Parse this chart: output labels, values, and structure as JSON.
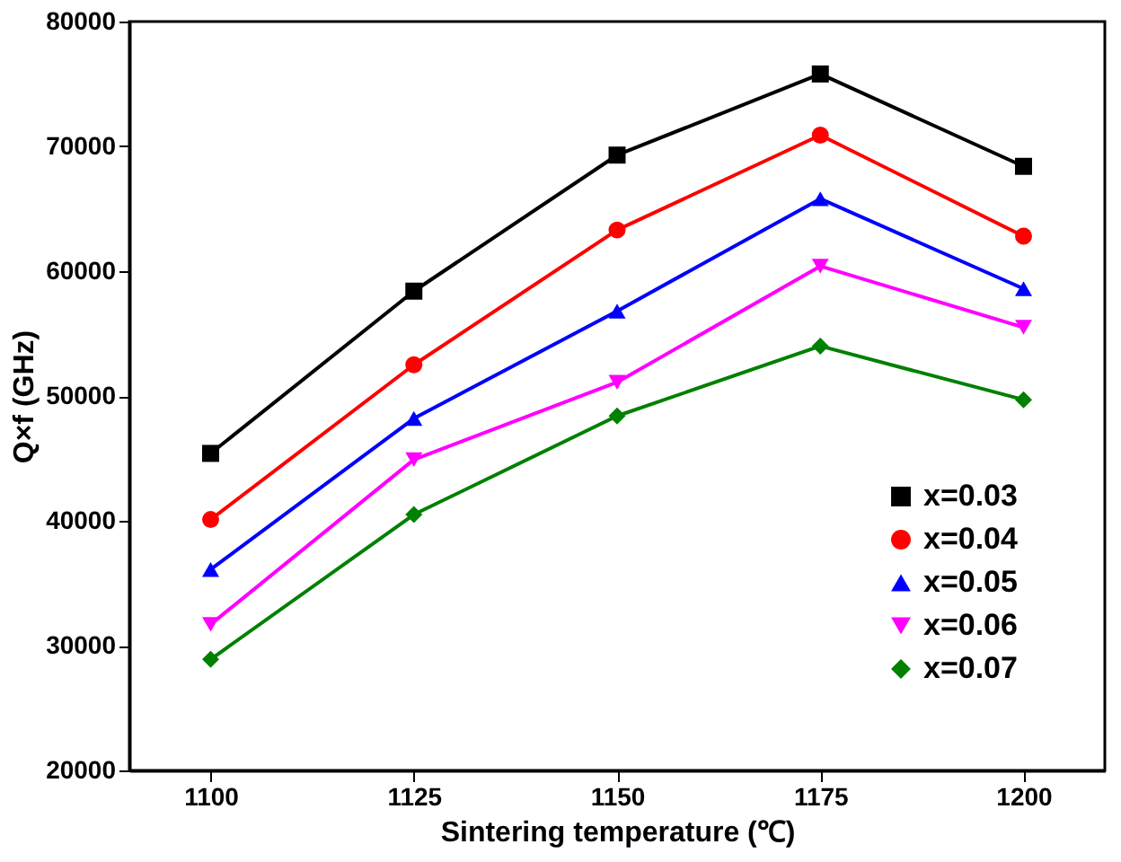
{
  "chart_data": {
    "type": "line",
    "xlabel": "Sintering temperature (℃)",
    "ylabel": "Q×f (GHz)",
    "x": [
      1100,
      1125,
      1150,
      1175,
      1200
    ],
    "xlim": [
      1090,
      1210
    ],
    "xticks": [
      1100,
      1125,
      1150,
      1175,
      1200
    ],
    "ylim": [
      20000,
      80000
    ],
    "yticks": [
      20000,
      30000,
      40000,
      50000,
      60000,
      70000,
      80000
    ],
    "grid": false,
    "legend": "bottom right",
    "line_style": "solid",
    "series": [
      {
        "name": "x=0.03",
        "color": "#000000",
        "marker": "square",
        "values": [
          45400,
          58400,
          69300,
          75800,
          68400
        ]
      },
      {
        "name": "x=0.04",
        "color": "#ff0000",
        "marker": "circle",
        "values": [
          40100,
          52500,
          63300,
          70900,
          62800
        ]
      },
      {
        "name": "x=0.05",
        "color": "#0000ff",
        "marker": "triangle",
        "values": [
          36100,
          48200,
          56800,
          65800,
          58600
        ]
      },
      {
        "name": "x=0.06",
        "color": "#ff00ff",
        "marker": "triangle-down",
        "values": [
          31700,
          44900,
          51100,
          60400,
          55500
        ]
      },
      {
        "name": "x=0.07",
        "color": "#008000",
        "marker": "diamond",
        "values": [
          28900,
          40500,
          48400,
          54000,
          49700
        ]
      }
    ]
  }
}
